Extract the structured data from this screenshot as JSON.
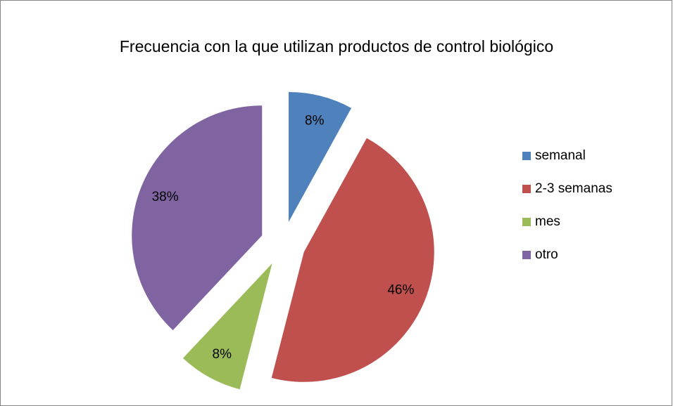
{
  "chart_data": {
    "type": "pie",
    "title": "Frecuencia con la que utilizan productos de control biológico",
    "categories": [
      "semanal",
      "2-3 semanas",
      "mes",
      "otro"
    ],
    "values": [
      8,
      46,
      8,
      38
    ],
    "value_labels": [
      "8%",
      "46%",
      "8%",
      "38%"
    ],
    "colors": [
      "#4f81bd",
      "#c0504d",
      "#9bbb59",
      "#8064a2"
    ],
    "legend": "right"
  }
}
